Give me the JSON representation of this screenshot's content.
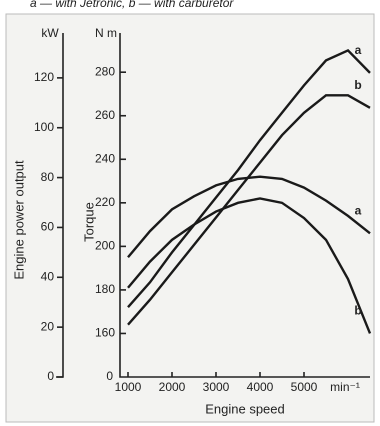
{
  "chart_data": {
    "type": "line",
    "subtitle": "a — with Jetronic, b — with carburetor",
    "xlabel": "Engine speed",
    "ylabel": "Engine power output",
    "y2label": "Torque",
    "yunit": "kW",
    "y2unit": "N m",
    "xunit": "min⁻¹",
    "y2_zero_label": "0",
    "x": [
      1000,
      1500,
      2000,
      2500,
      3000,
      3500,
      4000,
      4500,
      5000,
      5500,
      6000,
      6500
    ],
    "xlim": [
      1000,
      6500
    ],
    "xticks": [
      1000,
      2000,
      3000,
      4000,
      5000
    ],
    "ylim": [
      0,
      138
    ],
    "yticks": [
      0,
      20,
      40,
      60,
      80,
      100,
      120
    ],
    "y2lim": [
      140,
      298
    ],
    "y2ticks": [
      160,
      180,
      200,
      220,
      240,
      260,
      280
    ],
    "series": [
      {
        "name": "a",
        "color": "#1a1a1a",
        "values": [
          28,
          38,
          50,
          61,
          72,
          83,
          95,
          106,
          117,
          127,
          131,
          122
        ]
      },
      {
        "name": "b",
        "color": "#1a1a1a",
        "values": [
          21,
          31,
          42,
          53,
          64,
          75,
          86,
          97,
          106,
          113,
          113,
          108
        ]
      },
      {
        "name": "a",
        "color": "#1a1a1a",
        "axis": "y2",
        "values": [
          195,
          207,
          217,
          223,
          228,
          231,
          232,
          231,
          227,
          221,
          214,
          206
        ]
      },
      {
        "name": "b",
        "color": "#1a1a1a",
        "axis": "y2",
        "values": [
          181,
          193,
          203,
          210,
          216,
          220,
          222,
          220,
          213,
          203,
          185,
          160
        ]
      }
    ]
  }
}
